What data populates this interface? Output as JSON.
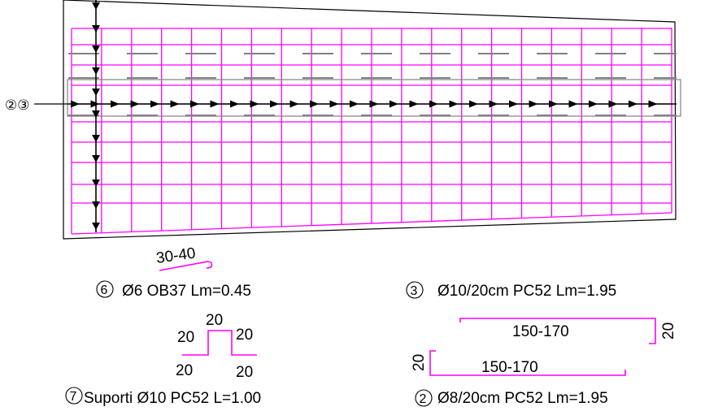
{
  "colors": {
    "rebar": "#ff00ff",
    "outline": "#000000",
    "dashed": "#808080",
    "background": "#ffffff"
  },
  "plan": {
    "bar_group_label": "②③"
  },
  "items": {
    "item6": {
      "marker": "6",
      "spec": "Ø6 OB37 Lm=0.45",
      "bend_range": "30-40"
    },
    "item7": {
      "marker": "7",
      "spec": "Suporti Ø10 PC52 L=1.00",
      "dim_top": "20",
      "dim_left": "20",
      "dim_right": "20",
      "dim_bottom_left": "20",
      "dim_bottom_right": "20"
    },
    "item3": {
      "marker": "3",
      "spec": "Ø10/20cm PC52 Lm=1.95",
      "length_range": "150-170",
      "hook": "20"
    },
    "item2": {
      "marker": "2",
      "spec": "Ø8/20cm PC52 Lm=1.95",
      "length_range": "150-170",
      "hook": "20"
    }
  }
}
